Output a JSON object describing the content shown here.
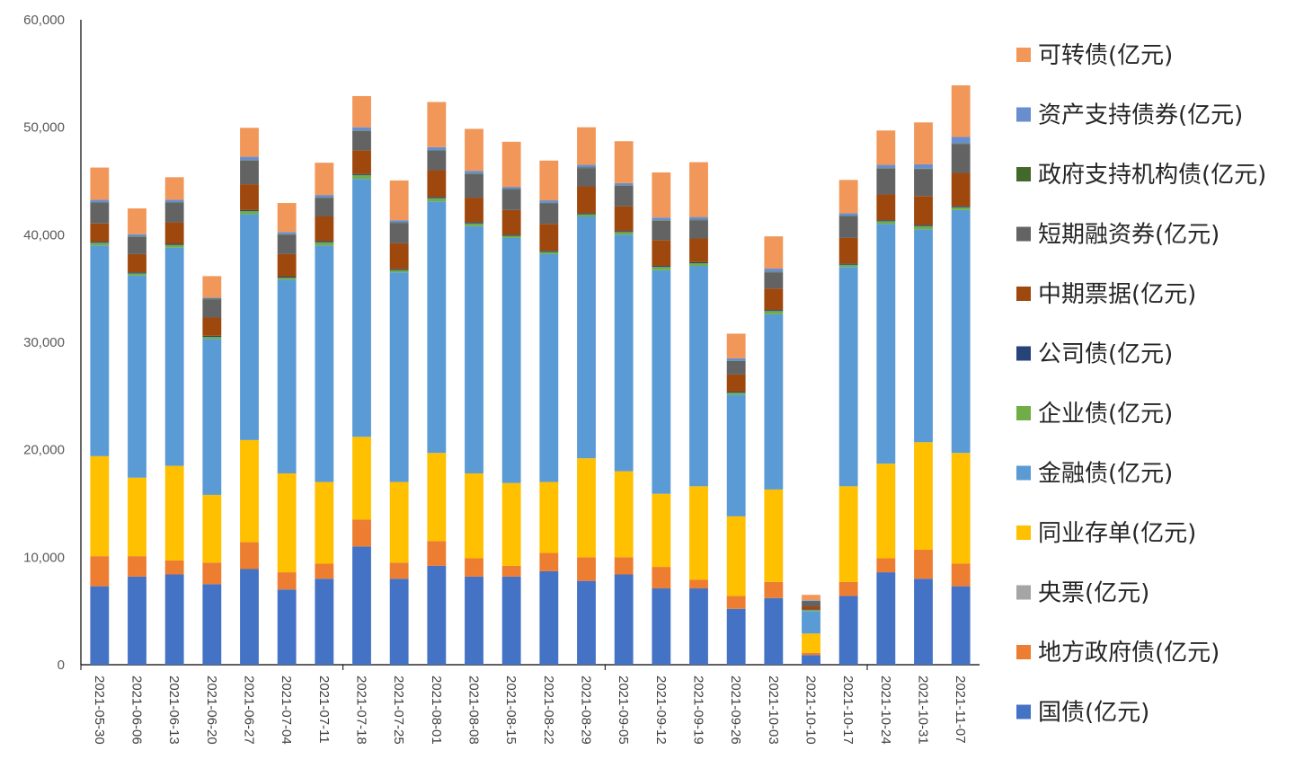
{
  "chart_data": {
    "type": "bar",
    "stacked": true,
    "title": "",
    "xlabel": "",
    "ylabel": "",
    "ylim": [
      0,
      60000
    ],
    "y_ticks": [
      "0",
      "10,000",
      "20,000",
      "30,000",
      "40,000",
      "50,000",
      "60,000"
    ],
    "y_tick_values": [
      0,
      10000,
      20000,
      30000,
      40000,
      50000,
      60000
    ],
    "grid": false,
    "legend_position": "right",
    "categories": [
      "2021-05-30",
      "2021-06-06",
      "2021-06-13",
      "2021-06-20",
      "2021-06-27",
      "2021-07-04",
      "2021-07-11",
      "2021-07-18",
      "2021-07-25",
      "2021-08-01",
      "2021-08-08",
      "2021-08-15",
      "2021-08-22",
      "2021-08-29",
      "2021-09-05",
      "2021-09-12",
      "2021-09-19",
      "2021-09-26",
      "2021-10-03",
      "2021-10-10",
      "2021-10-17",
      "2021-10-24",
      "2021-10-31",
      "2021-11-07"
    ],
    "series": [
      {
        "name": "国债(亿元)",
        "color": "#4472C4",
        "values": [
          7300,
          8200,
          8400,
          7500,
          8900,
          7000,
          8000,
          11000,
          8000,
          9200,
          8200,
          8200,
          8700,
          7800,
          8400,
          7100,
          7100,
          5200,
          6200,
          900,
          6400,
          8600,
          8000,
          7300
        ]
      },
      {
        "name": "地方政府债(亿元)",
        "color": "#ED7D31",
        "values": [
          2800,
          1900,
          1300,
          2000,
          2500,
          1600,
          1400,
          2500,
          1500,
          2300,
          1700,
          1000,
          1700,
          2200,
          1600,
          2000,
          800,
          1200,
          1500,
          200,
          1300,
          1300,
          2700,
          2100
        ]
      },
      {
        "name": "央票(亿元)",
        "color": "#A5A5A5",
        "values": [
          0,
          0,
          0,
          0,
          0,
          0,
          0,
          0,
          0,
          0,
          0,
          0,
          0,
          0,
          0,
          0,
          0,
          0,
          0,
          0,
          0,
          0,
          0,
          0
        ]
      },
      {
        "name": "同业存单(亿元)",
        "color": "#FFC000",
        "values": [
          9300,
          7300,
          8800,
          6300,
          9500,
          9200,
          7600,
          7700,
          7500,
          8200,
          7900,
          7700,
          6600,
          9200,
          8000,
          6800,
          8700,
          7400,
          8600,
          1800,
          8900,
          8800,
          10000,
          10300
        ]
      },
      {
        "name": "金融债(亿元)",
        "color": "#5B9BD5",
        "values": [
          19600,
          18800,
          20300,
          14500,
          21000,
          18000,
          22000,
          24000,
          19500,
          23400,
          23000,
          22800,
          21200,
          22500,
          22000,
          20800,
          20500,
          11300,
          16300,
          2100,
          20400,
          22300,
          19800,
          22600
        ]
      },
      {
        "name": "企业债(亿元)",
        "color": "#70AD47",
        "values": [
          250,
          200,
          250,
          200,
          300,
          200,
          300,
          350,
          200,
          300,
          250,
          200,
          200,
          200,
          250,
          300,
          250,
          200,
          300,
          100,
          200,
          250,
          300,
          250
        ]
      },
      {
        "name": "公司债(亿元)",
        "color": "#264478",
        "values": [
          100,
          100,
          100,
          100,
          100,
          100,
          100,
          100,
          100,
          100,
          100,
          100,
          100,
          100,
          100,
          100,
          100,
          100,
          100,
          30,
          100,
          100,
          100,
          100
        ]
      },
      {
        "name": "中期票据(亿元)",
        "color": "#9E480E",
        "values": [
          1700,
          1700,
          2000,
          1700,
          2400,
          2100,
          2300,
          2200,
          2400,
          2500,
          2300,
          2300,
          2500,
          2500,
          2300,
          2400,
          2200,
          1600,
          2000,
          300,
          2400,
          2400,
          2700,
          3100
        ]
      },
      {
        "name": "短期融资券(亿元)",
        "color": "#636363",
        "values": [
          1900,
          1600,
          1800,
          1700,
          2200,
          1800,
          1700,
          1800,
          1900,
          1800,
          2200,
          1900,
          1900,
          1700,
          1900,
          1800,
          1700,
          1200,
          1500,
          500,
          2000,
          2400,
          2500,
          2700
        ]
      },
      {
        "name": "政府支持机构债(亿元)",
        "color": "#43682B",
        "values": [
          50,
          50,
          50,
          50,
          50,
          50,
          50,
          50,
          50,
          50,
          50,
          50,
          50,
          50,
          50,
          50,
          50,
          50,
          50,
          20,
          50,
          50,
          50,
          50
        ]
      },
      {
        "name": "资产支持债券(亿元)",
        "color": "#698ED0",
        "values": [
          250,
          200,
          250,
          100,
          300,
          200,
          250,
          300,
          200,
          300,
          250,
          200,
          250,
          250,
          200,
          250,
          250,
          250,
          300,
          50,
          250,
          300,
          400,
          600
        ]
      },
      {
        "name": "可转债(亿元)",
        "color": "#F1975A",
        "values": [
          3000,
          2400,
          2100,
          2000,
          2700,
          2700,
          3000,
          2900,
          3700,
          4200,
          3900,
          4200,
          3700,
          3500,
          3900,
          4200,
          5100,
          2300,
          3000,
          500,
          3100,
          3200,
          3900,
          4800
        ]
      }
    ]
  }
}
